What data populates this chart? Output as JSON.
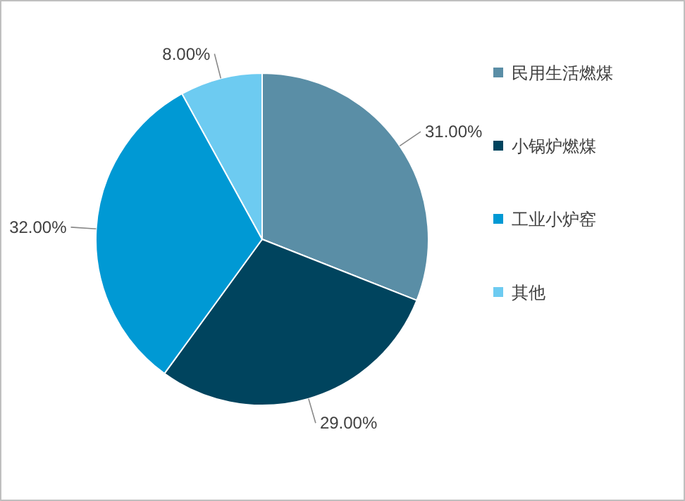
{
  "chart_data": {
    "type": "pie",
    "categories": [
      "民用生活燃煤",
      "小锅炉燃煤",
      "工业小炉窑",
      "其他"
    ],
    "values": [
      31,
      29,
      32,
      8
    ],
    "colors": [
      "#5a8ea6",
      "#00445e",
      "#0099d4",
      "#6dcbf1"
    ],
    "value_labels": [
      "31.00%",
      "29.00%",
      "32.00%",
      "8.00%"
    ],
    "legend": "right"
  }
}
